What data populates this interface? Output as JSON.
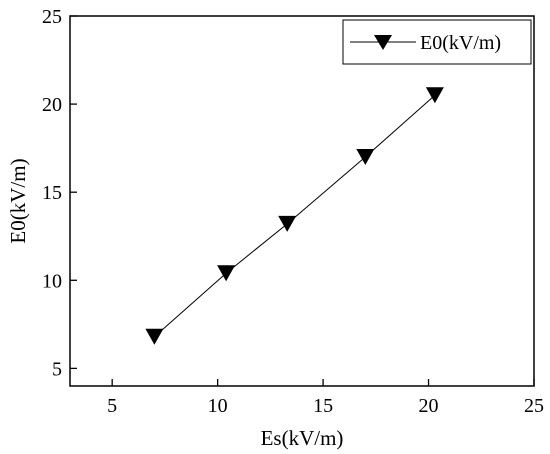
{
  "chart_data": {
    "type": "line",
    "title": "",
    "xlabel": "Es(kV/m)",
    "ylabel": "E0(kV/m)",
    "xlim": [
      3,
      25
    ],
    "ylim": [
      4,
      25
    ],
    "xticks": [
      5,
      10,
      15,
      20,
      25
    ],
    "yticks": [
      5,
      10,
      15,
      20,
      25
    ],
    "x_tick_labels": [
      "5",
      "10",
      "15",
      "20",
      "25"
    ],
    "y_tick_labels": [
      "5",
      "10",
      "15",
      "20",
      "25"
    ],
    "grid": false,
    "legend_position": "top-right",
    "series": [
      {
        "name": "E0(kV/m)",
        "marker": "down-triangle",
        "color": "#000000",
        "x": [
          7.0,
          10.4,
          13.3,
          17.0,
          20.3
        ],
        "y": [
          6.8,
          10.4,
          13.2,
          17.0,
          20.5
        ]
      }
    ]
  }
}
